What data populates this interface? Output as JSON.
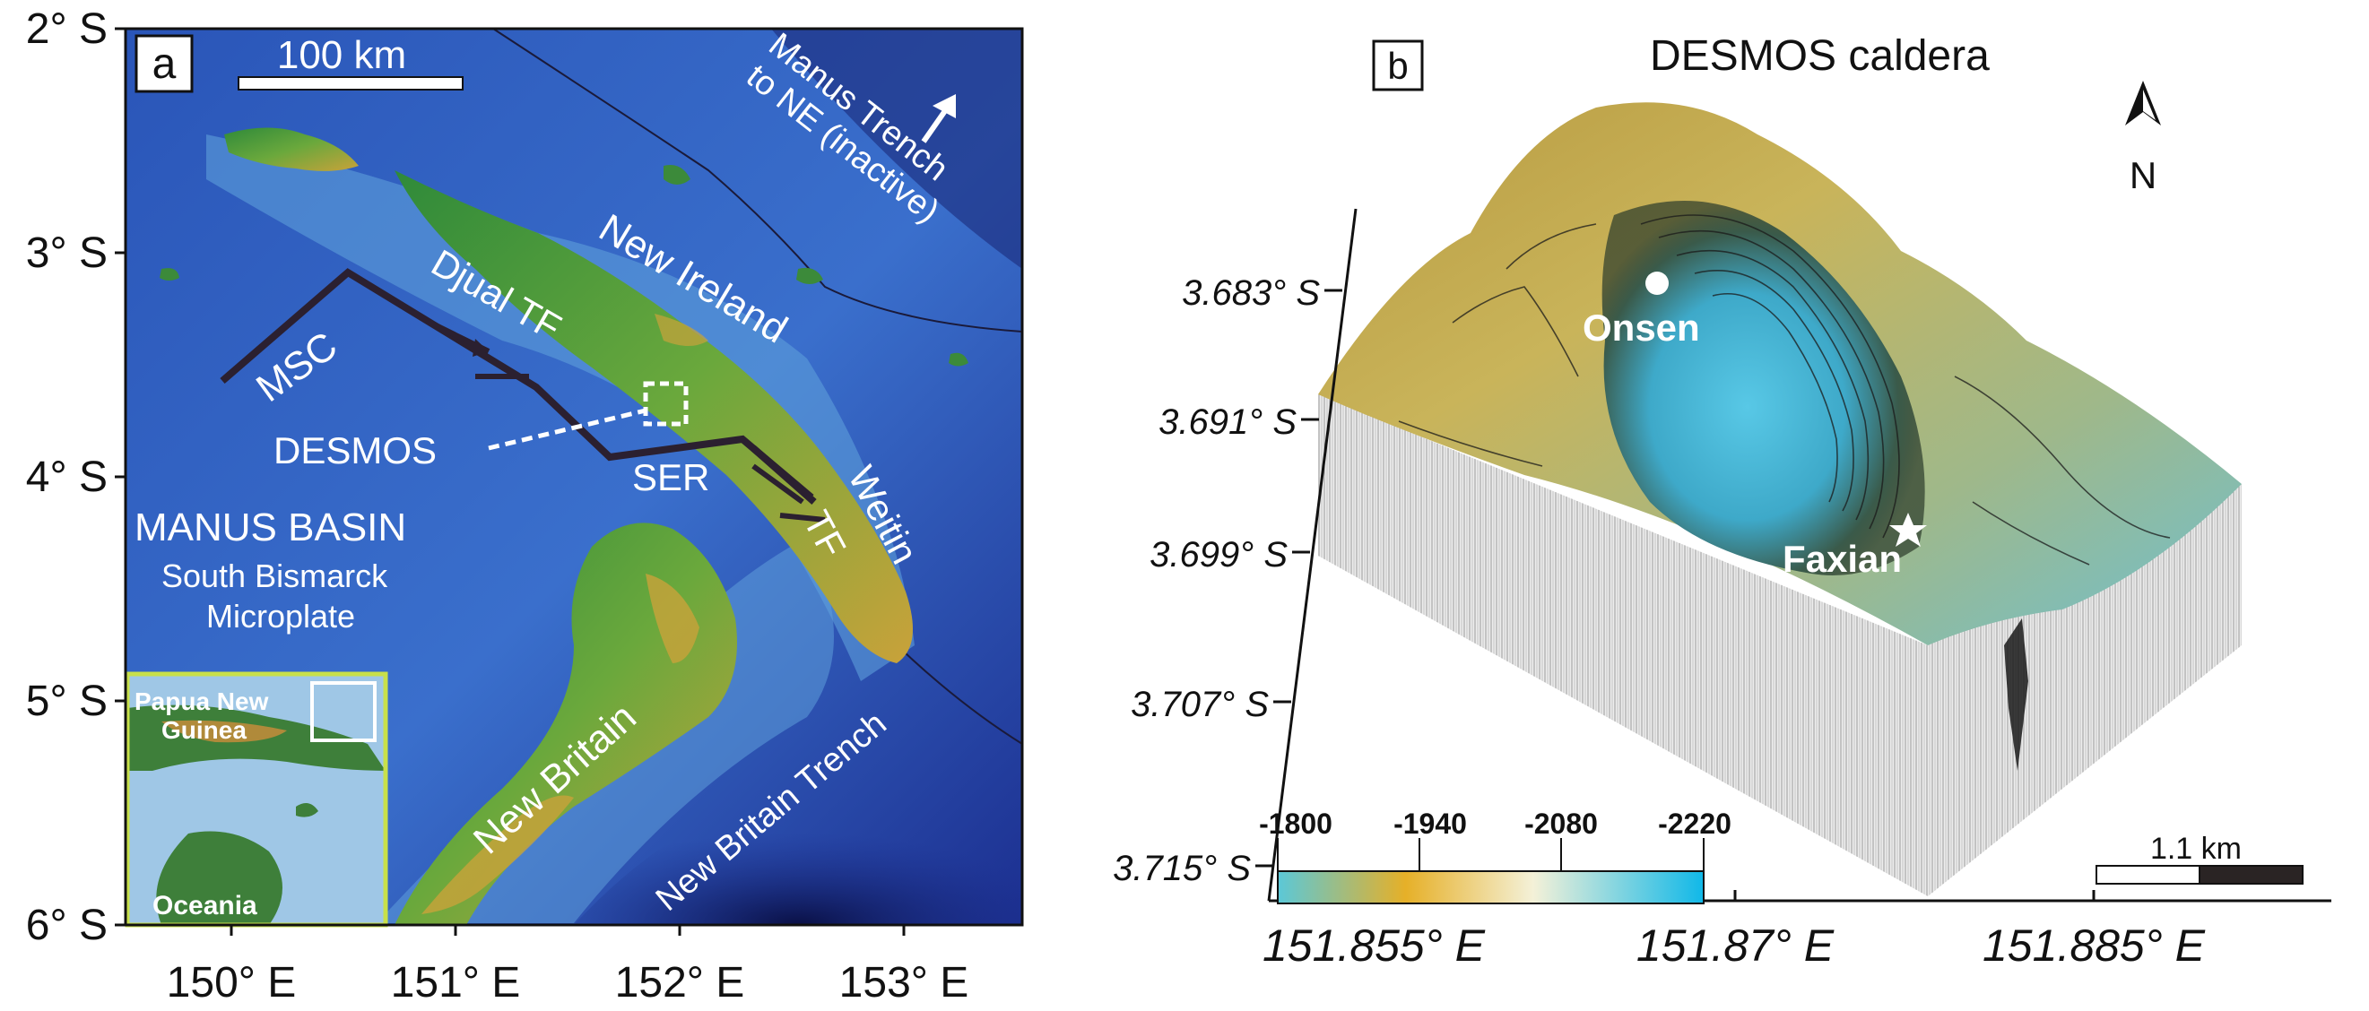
{
  "panel_a": {
    "label": "a",
    "lat_ticks": [
      "2° S",
      "3° S",
      "4° S",
      "5° S",
      "6° S"
    ],
    "lon_ticks": [
      "150° E",
      "151° E",
      "152° E",
      "153° E"
    ],
    "scale": "100 km",
    "labels": {
      "manus_trench": [
        "Manus Trench",
        "to NE (inactive)"
      ],
      "new_ireland": "New Ireland",
      "djual_tf": "Djual TF",
      "msc": "MSC",
      "desmos": "DESMOS",
      "ser": "SER",
      "weitin": "Weitin",
      "tf": "TF",
      "manus_basin": "MANUS BASIN",
      "south_bismarck": "South Bismarck",
      "microplate": "Microplate",
      "new_britain": "New Britain",
      "new_britain_trench": "New Britain Trench"
    },
    "inset": {
      "png": [
        "Papua New",
        "Guinea"
      ],
      "oceania": "Oceania"
    }
  },
  "panel_b": {
    "label": "b",
    "title": "DESMOS caldera",
    "north": "N",
    "lat_ticks": [
      "3.683° S",
      "3.691° S",
      "3.699° S",
      "3.707° S",
      "3.715° S"
    ],
    "lon_ticks": [
      "151.855° E",
      "151.87° E",
      "151.885° E"
    ],
    "sites": {
      "onsen": "Onsen",
      "faxian": "Faxian"
    },
    "colorbar_ticks": [
      "-1800",
      "-1940",
      "-2080",
      "-2220"
    ],
    "scale": "1.1 km"
  },
  "colors": {
    "ocean_deep": "#1b2f8c",
    "ocean": "#2f5fc4",
    "shelf": "#6fb0d8",
    "land_low": "#3a8a3c",
    "land_high": "#c9a23a",
    "fault": "#2b2030",
    "box_outline": "#c8e04a",
    "surface_yellow": "#c9b050",
    "surface_cyan": "#5fc6e0"
  }
}
